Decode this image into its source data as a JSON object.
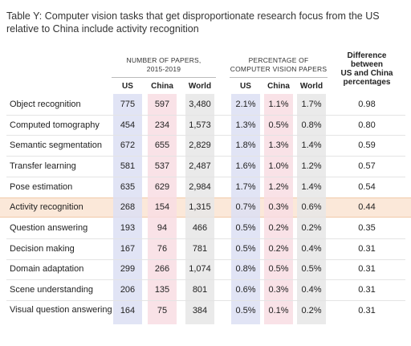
{
  "title": "Table Y: Computer vision tasks that get disproportionate research focus from the US relative to China include activity recognition",
  "groups": [
    {
      "title": "NUMBER OF PAPERS,\n2015-2019",
      "columns": [
        {
          "label": "US",
          "color": "#dcdff3"
        },
        {
          "label": "China",
          "color": "#f8dde3"
        },
        {
          "label": "World",
          "color": "#e6e6e6"
        }
      ]
    },
    {
      "title": "PERCENTAGE OF\nCOMPUTER VISION PAPERS",
      "columns": [
        {
          "label": "US",
          "color": "#dcdff3"
        },
        {
          "label": "China",
          "color": "#f8dde3"
        },
        {
          "label": "World",
          "color": "#e6e6e6"
        }
      ]
    }
  ],
  "difference_header": "Difference\nbetween\nUS and China\npercentages",
  "highlight_color": "#fbe8d9",
  "rows": [
    {
      "label": "Object recognition",
      "cells": [
        "775",
        "597",
        "3,480",
        "2.1%",
        "1.1%",
        "1.7%",
        "0.98"
      ]
    },
    {
      "label": "Computed tomography",
      "cells": [
        "454",
        "234",
        "1,573",
        "1.3%",
        "0.5%",
        "0.8%",
        "0.80"
      ]
    },
    {
      "label": "Semantic segmentation",
      "cells": [
        "672",
        "655",
        "2,829",
        "1.8%",
        "1.3%",
        "1.4%",
        "0.59"
      ]
    },
    {
      "label": "Transfer learning",
      "cells": [
        "581",
        "537",
        "2,487",
        "1.6%",
        "1.0%",
        "1.2%",
        "0.57"
      ]
    },
    {
      "label": "Pose estimation",
      "cells": [
        "635",
        "629",
        "2,984",
        "1.7%",
        "1.2%",
        "1.4%",
        "0.54"
      ]
    },
    {
      "label": "Activity recognition",
      "cells": [
        "268",
        "154",
        "1,315",
        "0.7%",
        "0.3%",
        "0.6%",
        "0.44"
      ],
      "highlight": true
    },
    {
      "label": "Question answering",
      "cells": [
        "193",
        "94",
        "466",
        "0.5%",
        "0.2%",
        "0.2%",
        "0.35"
      ]
    },
    {
      "label": "Decision making",
      "cells": [
        "167",
        "76",
        "781",
        "0.5%",
        "0.2%",
        "0.4%",
        "0.31"
      ]
    },
    {
      "label": "Domain adaptation",
      "cells": [
        "299",
        "266",
        "1,074",
        "0.8%",
        "0.5%",
        "0.5%",
        "0.31"
      ]
    },
    {
      "label": "Scene understanding",
      "cells": [
        "206",
        "135",
        "801",
        "0.6%",
        "0.3%",
        "0.4%",
        "0.31"
      ]
    },
    {
      "label": "Visual question answering",
      "cells": [
        "164",
        "75",
        "384",
        "0.5%",
        "0.1%",
        "0.2%",
        "0.31"
      ]
    }
  ]
}
